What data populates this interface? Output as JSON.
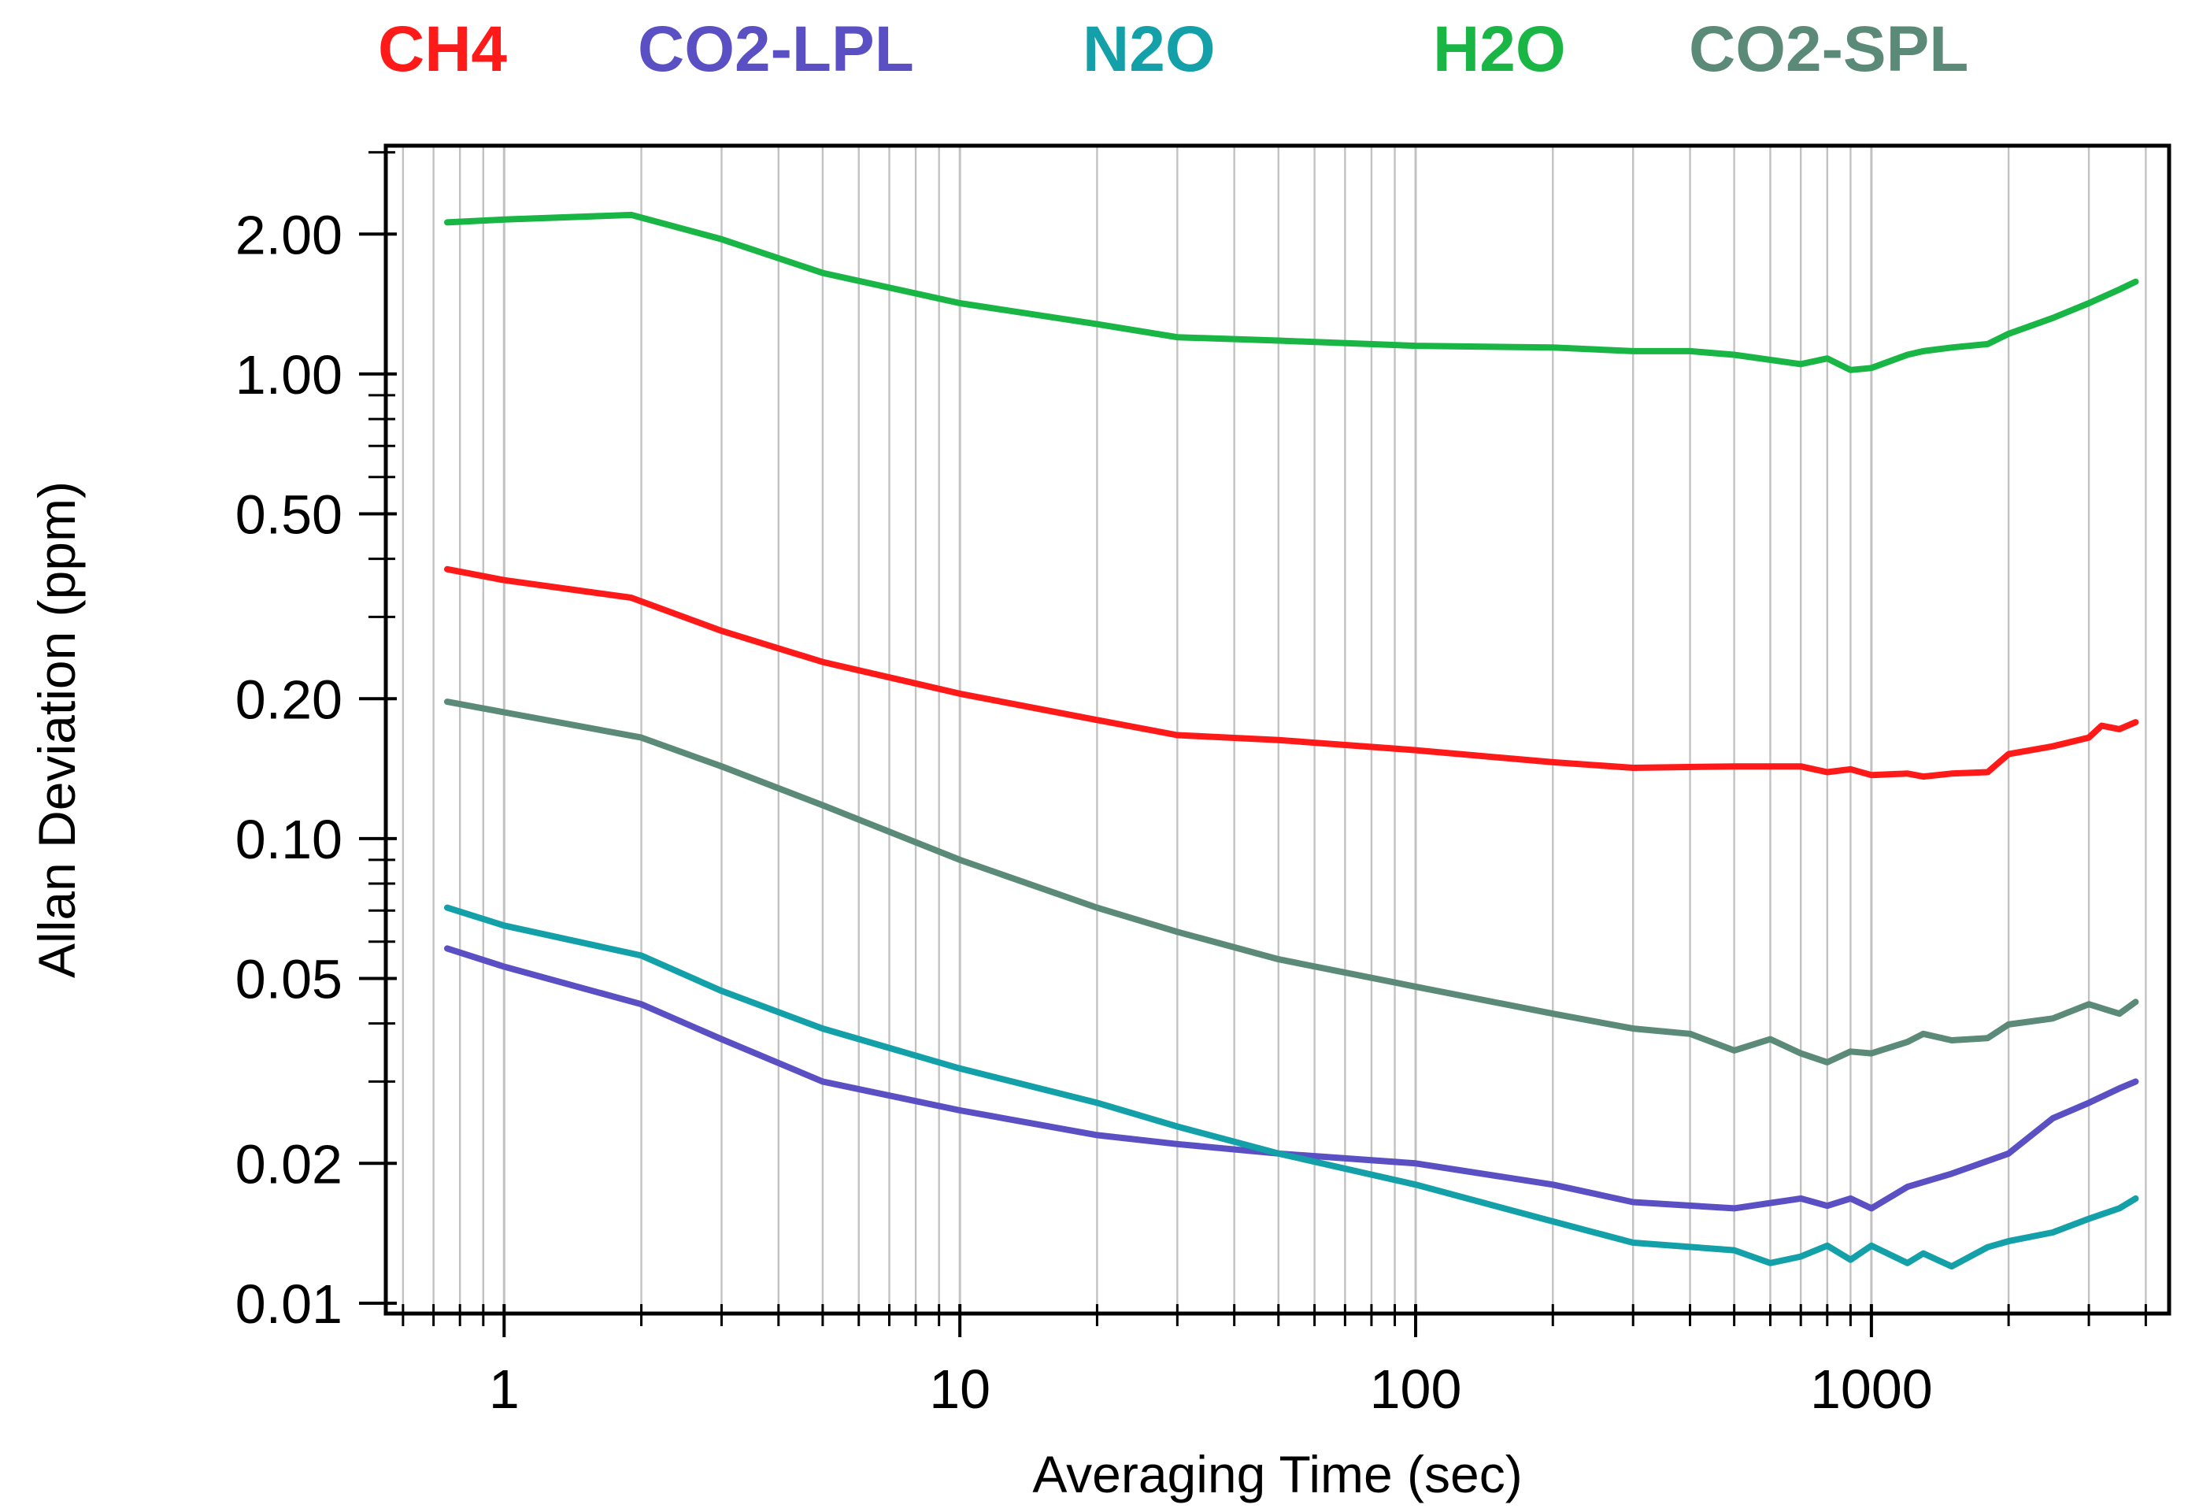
{
  "chart_data": {
    "type": "line",
    "x_scale": "log",
    "y_scale": "log",
    "xlabel": "Averaging Time (sec)",
    "ylabel": "Allan Deviation (ppm)",
    "xlim": [
      0.55,
      4500
    ],
    "ylim": [
      0.0095,
      3.1
    ],
    "grid": true,
    "legend_position": "top",
    "x_ticks": [
      {
        "value": 1,
        "label": "1"
      },
      {
        "value": 10,
        "label": "10"
      },
      {
        "value": 100,
        "label": "100"
      },
      {
        "value": 1000,
        "label": "1000"
      }
    ],
    "y_ticks": [
      {
        "value": 0.01,
        "label": "0.01"
      },
      {
        "value": 0.02,
        "label": "0.02"
      },
      {
        "value": 0.05,
        "label": "0.05"
      },
      {
        "value": 0.1,
        "label": "0.10"
      },
      {
        "value": 0.2,
        "label": "0.20"
      },
      {
        "value": 0.5,
        "label": "0.50"
      },
      {
        "value": 1.0,
        "label": "1.00"
      },
      {
        "value": 2.0,
        "label": "2.00"
      }
    ],
    "series": [
      {
        "name": "CH4",
        "color": "#ff1a1a",
        "points": [
          [
            0.75,
            0.38
          ],
          [
            1,
            0.36
          ],
          [
            1.9,
            0.33
          ],
          [
            3,
            0.28
          ],
          [
            5,
            0.24
          ],
          [
            10,
            0.205
          ],
          [
            20,
            0.18
          ],
          [
            30,
            0.167
          ],
          [
            50,
            0.163
          ],
          [
            100,
            0.155
          ],
          [
            200,
            0.146
          ],
          [
            300,
            0.142
          ],
          [
            500,
            0.143
          ],
          [
            700,
            0.143
          ],
          [
            800,
            0.139
          ],
          [
            900,
            0.141
          ],
          [
            1000,
            0.137
          ],
          [
            1200,
            0.138
          ],
          [
            1300,
            0.136
          ],
          [
            1500,
            0.138
          ],
          [
            1800,
            0.139
          ],
          [
            2000,
            0.152
          ],
          [
            2500,
            0.158
          ],
          [
            3000,
            0.165
          ],
          [
            3200,
            0.175
          ],
          [
            3500,
            0.172
          ],
          [
            3800,
            0.178
          ]
        ]
      },
      {
        "name": "CO2-LPL",
        "color": "#5b4fc4",
        "points": [
          [
            0.75,
            0.058
          ],
          [
            1,
            0.053
          ],
          [
            2,
            0.044
          ],
          [
            3,
            0.037
          ],
          [
            5,
            0.03
          ],
          [
            10,
            0.026
          ],
          [
            20,
            0.023
          ],
          [
            30,
            0.022
          ],
          [
            50,
            0.021
          ],
          [
            100,
            0.02
          ],
          [
            200,
            0.018
          ],
          [
            300,
            0.0165
          ],
          [
            500,
            0.016
          ],
          [
            700,
            0.0168
          ],
          [
            800,
            0.0162
          ],
          [
            900,
            0.0168
          ],
          [
            1000,
            0.016
          ],
          [
            1200,
            0.0178
          ],
          [
            1500,
            0.019
          ],
          [
            2000,
            0.021
          ],
          [
            2500,
            0.025
          ],
          [
            3000,
            0.027
          ],
          [
            3500,
            0.029
          ],
          [
            3800,
            0.03
          ]
        ]
      },
      {
        "name": "N2O",
        "color": "#13a0a8",
        "points": [
          [
            0.75,
            0.071
          ],
          [
            1,
            0.065
          ],
          [
            2,
            0.056
          ],
          [
            3,
            0.047
          ],
          [
            5,
            0.039
          ],
          [
            10,
            0.032
          ],
          [
            20,
            0.027
          ],
          [
            30,
            0.024
          ],
          [
            50,
            0.021
          ],
          [
            100,
            0.018
          ],
          [
            200,
            0.015
          ],
          [
            300,
            0.0135
          ],
          [
            500,
            0.013
          ],
          [
            600,
            0.0122
          ],
          [
            700,
            0.0126
          ],
          [
            800,
            0.0133
          ],
          [
            900,
            0.0124
          ],
          [
            1000,
            0.0133
          ],
          [
            1200,
            0.0122
          ],
          [
            1300,
            0.0128
          ],
          [
            1500,
            0.012
          ],
          [
            1800,
            0.0132
          ],
          [
            2000,
            0.0136
          ],
          [
            2500,
            0.0142
          ],
          [
            3000,
            0.0152
          ],
          [
            3500,
            0.016
          ],
          [
            3800,
            0.0168
          ]
        ]
      },
      {
        "name": "H2O",
        "color": "#19b545",
        "points": [
          [
            0.75,
            2.12
          ],
          [
            1,
            2.15
          ],
          [
            1.9,
            2.2
          ],
          [
            3,
            1.95
          ],
          [
            5,
            1.65
          ],
          [
            10,
            1.42
          ],
          [
            20,
            1.28
          ],
          [
            30,
            1.2
          ],
          [
            50,
            1.18
          ],
          [
            100,
            1.15
          ],
          [
            200,
            1.14
          ],
          [
            300,
            1.12
          ],
          [
            400,
            1.12
          ],
          [
            500,
            1.1
          ],
          [
            700,
            1.05
          ],
          [
            800,
            1.08
          ],
          [
            900,
            1.02
          ],
          [
            1000,
            1.03
          ],
          [
            1200,
            1.1
          ],
          [
            1300,
            1.12
          ],
          [
            1500,
            1.14
          ],
          [
            1800,
            1.16
          ],
          [
            2000,
            1.22
          ],
          [
            2500,
            1.32
          ],
          [
            3000,
            1.42
          ],
          [
            3500,
            1.52
          ],
          [
            3800,
            1.58
          ]
        ]
      },
      {
        "name": "CO2-SPL",
        "color": "#5b8a79",
        "points": [
          [
            0.75,
            0.197
          ],
          [
            1,
            0.187
          ],
          [
            2,
            0.165
          ],
          [
            3,
            0.143
          ],
          [
            5,
            0.118
          ],
          [
            10,
            0.09
          ],
          [
            20,
            0.071
          ],
          [
            30,
            0.063
          ],
          [
            50,
            0.055
          ],
          [
            100,
            0.048
          ],
          [
            200,
            0.042
          ],
          [
            300,
            0.039
          ],
          [
            400,
            0.038
          ],
          [
            500,
            0.035
          ],
          [
            600,
            0.037
          ],
          [
            700,
            0.0345
          ],
          [
            800,
            0.033
          ],
          [
            900,
            0.0348
          ],
          [
            1000,
            0.0345
          ],
          [
            1200,
            0.0365
          ],
          [
            1300,
            0.038
          ],
          [
            1500,
            0.0368
          ],
          [
            1800,
            0.0372
          ],
          [
            2000,
            0.0398
          ],
          [
            2500,
            0.041
          ],
          [
            3000,
            0.044
          ],
          [
            3500,
            0.042
          ],
          [
            3800,
            0.0445
          ]
        ]
      }
    ]
  }
}
